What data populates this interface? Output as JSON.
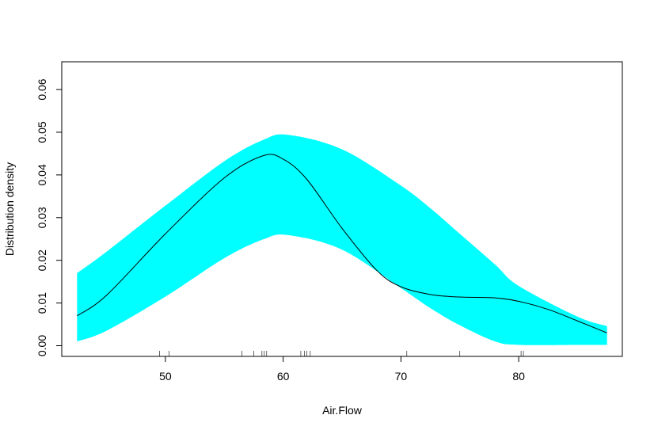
{
  "chart_data": {
    "type": "area",
    "title": "",
    "xlabel": "Air.Flow",
    "ylabel": "Distribution density",
    "xlim": [
      41.2,
      88.8
    ],
    "ylim": [
      -0.0025,
      0.0665
    ],
    "x_ticks": [
      50,
      60,
      70,
      80
    ],
    "y_ticks": [
      0.0,
      0.01,
      0.02,
      0.03,
      0.04,
      0.05,
      0.06
    ],
    "y_tick_labels": [
      "0.00",
      "0.01",
      "0.02",
      "0.03",
      "0.04",
      "0.05",
      "0.06"
    ],
    "band_color": "#00ffff",
    "line_color": "#000000",
    "band": {
      "x": [
        42.5,
        45,
        50,
        55,
        58.3,
        60.4,
        65,
        70,
        72.5,
        75,
        78,
        80,
        85,
        87.5
      ],
      "lower": [
        0.001,
        0.0035,
        0.0115,
        0.0205,
        0.0249,
        0.0259,
        0.0225,
        0.0135,
        0.0088,
        0.0048,
        0.001,
        0.0002,
        0.0002,
        0.0002
      ],
      "upper": [
        0.017,
        0.022,
        0.0328,
        0.0432,
        0.0482,
        0.0494,
        0.046,
        0.0375,
        0.0322,
        0.0262,
        0.019,
        0.014,
        0.0068,
        0.0046
      ]
    },
    "series": [
      {
        "x": [
          42.5,
          45,
          50,
          55,
          58.3,
          60,
          62,
          65,
          68,
          70,
          72.5,
          75,
          78,
          80,
          82.5,
          85,
          87.5
        ],
        "values": [
          0.007,
          0.0118,
          0.0262,
          0.0393,
          0.0445,
          0.0437,
          0.039,
          0.0275,
          0.0175,
          0.0138,
          0.012,
          0.0114,
          0.0112,
          0.0104,
          0.0085,
          0.0058,
          0.003
        ]
      }
    ],
    "rug": [
      49.5,
      50.3,
      56.5,
      57.5,
      58.2,
      58.4,
      58.6,
      61.5,
      61.8,
      62.0,
      62.3,
      70.5,
      75.0,
      80.2,
      80.4
    ],
    "grid": false
  }
}
